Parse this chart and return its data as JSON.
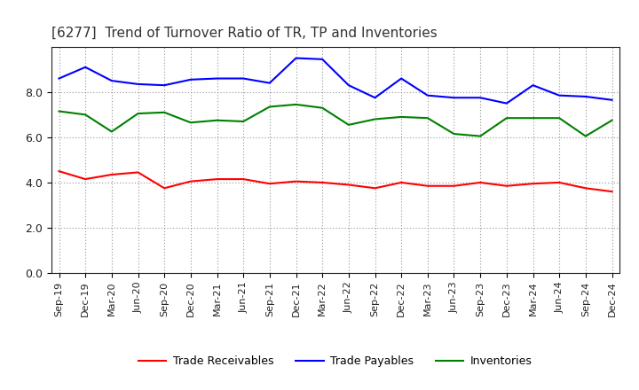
{
  "title": "[6277]  Trend of Turnover Ratio of TR, TP and Inventories",
  "x_labels": [
    "Sep-19",
    "Dec-19",
    "Mar-20",
    "Jun-20",
    "Sep-20",
    "Dec-20",
    "Mar-21",
    "Jun-21",
    "Sep-21",
    "Dec-21",
    "Mar-22",
    "Jun-22",
    "Sep-22",
    "Dec-22",
    "Mar-23",
    "Jun-23",
    "Sep-23",
    "Dec-23",
    "Mar-24",
    "Jun-24",
    "Sep-24",
    "Dec-24"
  ],
  "trade_receivables": [
    4.5,
    4.15,
    4.35,
    4.45,
    3.75,
    4.05,
    4.15,
    4.15,
    3.95,
    4.05,
    4.0,
    3.9,
    3.75,
    4.0,
    3.85,
    3.85,
    4.0,
    3.85,
    3.95,
    4.0,
    3.75,
    3.6
  ],
  "trade_payables": [
    8.6,
    9.1,
    8.5,
    8.35,
    8.3,
    8.55,
    8.6,
    8.6,
    8.4,
    9.5,
    9.45,
    8.3,
    7.75,
    8.6,
    7.85,
    7.75,
    7.75,
    7.5,
    8.3,
    7.85,
    7.8,
    7.65
  ],
  "inventories": [
    7.15,
    7.0,
    6.25,
    7.05,
    7.1,
    6.65,
    6.75,
    6.7,
    7.35,
    7.45,
    7.3,
    6.55,
    6.8,
    6.9,
    6.85,
    6.15,
    6.05,
    6.85,
    6.85,
    6.85,
    6.05,
    6.75
  ],
  "tr_color": "#ff0000",
  "tp_color": "#0000ff",
  "inv_color": "#008000",
  "tr_label": "Trade Receivables",
  "tp_label": "Trade Payables",
  "inv_label": "Inventories",
  "ylim": [
    0.0,
    10.0
  ],
  "yticks": [
    0.0,
    2.0,
    4.0,
    6.0,
    8.0
  ],
  "bg_color": "#ffffff",
  "grid_color": "#888888",
  "title_fontsize": 11,
  "legend_fontsize": 9,
  "axis_fontsize": 8,
  "title_color": "#333333"
}
